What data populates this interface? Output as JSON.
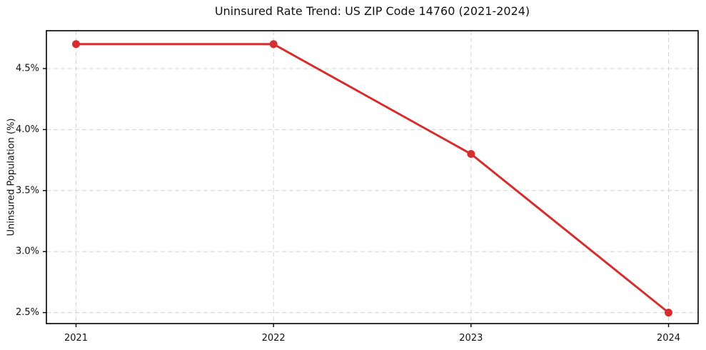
{
  "chart_data": {
    "type": "line",
    "title": "Uninsured Rate Trend: US ZIP Code 14760 (2021-2024)",
    "xlabel": "",
    "ylabel": "Uninsured Population (%)",
    "x": [
      2021,
      2022,
      2023,
      2024
    ],
    "values": [
      4.7,
      4.7,
      3.8,
      2.5
    ],
    "xticks": [
      2021,
      2022,
      2023,
      2024
    ],
    "xtick_labels": [
      "2021",
      "2022",
      "2023",
      "2024"
    ],
    "yticks": [
      2.5,
      3.0,
      3.5,
      4.0,
      4.5
    ],
    "ytick_labels": [
      "2.5%",
      "3.0%",
      "3.5%",
      "4.0%",
      "4.5%"
    ],
    "xlim": [
      2020.85,
      2024.15
    ],
    "ylim": [
      2.41,
      4.81
    ],
    "grid": true,
    "grid_style": "dashed",
    "legend": "none",
    "marker": "circle",
    "line_color": "#d32f2f",
    "grid_color": "#d3d3d3",
    "axis_color": "#000000",
    "text_color": "#111111",
    "background_color": "#ffffff"
  }
}
